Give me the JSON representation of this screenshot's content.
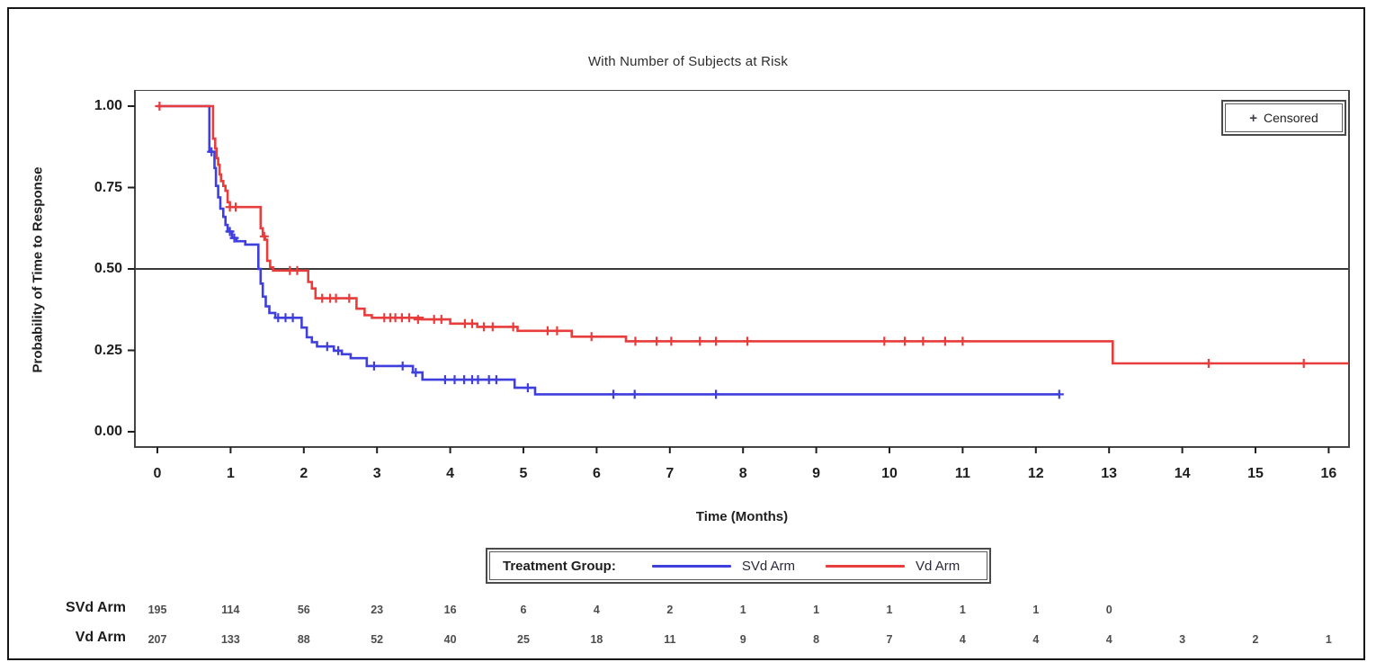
{
  "page": {
    "background": "#ffffff",
    "border_color": "#161616"
  },
  "chart_data": {
    "type": "line",
    "subtype": "kaplan-meier-step",
    "title": "With Number of Subjects at Risk",
    "xlabel": "Time (Months)",
    "ylabel": "Probability of Time to Response",
    "xlim": [
      -0.3,
      16.3
    ],
    "ylim": [
      -0.05,
      1.05
    ],
    "grid": false,
    "reference_line_y": 0.5,
    "xticks": [
      0,
      1,
      2,
      3,
      4,
      5,
      6,
      7,
      8,
      9,
      10,
      11,
      12,
      13,
      14,
      15,
      16
    ],
    "yticks": [
      "0.00",
      "0.25",
      "0.50",
      "0.75",
      "1.00"
    ],
    "censored_legend": {
      "marker": "+",
      "label": "Censored",
      "position": "top-right"
    },
    "group_legend_label": "Treatment Group:",
    "series": [
      {
        "name": "SVd Arm",
        "color": "#3f3fdd",
        "start": [
          0,
          1.0
        ],
        "drops": [
          [
            0.71,
            0.86
          ],
          [
            0.78,
            0.81
          ],
          [
            0.8,
            0.755
          ],
          [
            0.83,
            0.72
          ],
          [
            0.86,
            0.685
          ],
          [
            0.9,
            0.66
          ],
          [
            0.93,
            0.635
          ],
          [
            0.96,
            0.615
          ],
          [
            1.02,
            0.595
          ],
          [
            1.08,
            0.585
          ],
          [
            1.2,
            0.575
          ],
          [
            1.38,
            0.5
          ],
          [
            1.41,
            0.455
          ],
          [
            1.44,
            0.415
          ],
          [
            1.48,
            0.385
          ],
          [
            1.53,
            0.365
          ],
          [
            1.61,
            0.35
          ],
          [
            1.97,
            0.32
          ],
          [
            2.04,
            0.29
          ],
          [
            2.11,
            0.275
          ],
          [
            2.18,
            0.262
          ],
          [
            2.41,
            0.249
          ],
          [
            2.52,
            0.238
          ],
          [
            2.64,
            0.226
          ],
          [
            2.86,
            0.202
          ],
          [
            3.49,
            0.182
          ],
          [
            3.62,
            0.16
          ],
          [
            4.88,
            0.135
          ],
          [
            5.16,
            0.115
          ]
        ],
        "end_t": 12.32,
        "censors": [
          [
            0.74,
            0.86
          ],
          [
            0.99,
            0.615
          ],
          [
            1.05,
            0.595
          ],
          [
            1.65,
            0.35
          ],
          [
            1.75,
            0.35
          ],
          [
            1.85,
            0.35
          ],
          [
            2.32,
            0.262
          ],
          [
            2.47,
            0.249
          ],
          [
            2.96,
            0.202
          ],
          [
            3.35,
            0.202
          ],
          [
            3.53,
            0.182
          ],
          [
            3.93,
            0.16
          ],
          [
            4.06,
            0.16
          ],
          [
            4.19,
            0.16
          ],
          [
            4.3,
            0.16
          ],
          [
            4.38,
            0.16
          ],
          [
            4.53,
            0.16
          ],
          [
            4.63,
            0.16
          ],
          [
            5.06,
            0.135
          ],
          [
            6.23,
            0.115
          ],
          [
            6.52,
            0.115
          ],
          [
            7.63,
            0.115
          ],
          [
            12.32,
            0.115
          ]
        ]
      },
      {
        "name": "Vd Arm",
        "color": "#e83d3d",
        "start": [
          0,
          1.0
        ],
        "drops": [
          [
            0.76,
            0.9
          ],
          [
            0.79,
            0.87
          ],
          [
            0.81,
            0.84
          ],
          [
            0.83,
            0.82
          ],
          [
            0.85,
            0.79
          ],
          [
            0.87,
            0.77
          ],
          [
            0.9,
            0.755
          ],
          [
            0.93,
            0.74
          ],
          [
            0.96,
            0.705
          ],
          [
            0.99,
            0.69
          ],
          [
            1.41,
            0.625
          ],
          [
            1.44,
            0.6
          ],
          [
            1.47,
            0.59
          ],
          [
            1.5,
            0.525
          ],
          [
            1.54,
            0.505
          ],
          [
            1.58,
            0.495
          ],
          [
            2.06,
            0.46
          ],
          [
            2.11,
            0.44
          ],
          [
            2.16,
            0.41
          ],
          [
            2.72,
            0.378
          ],
          [
            2.83,
            0.358
          ],
          [
            2.93,
            0.35
          ],
          [
            3.62,
            0.345
          ],
          [
            4.0,
            0.332
          ],
          [
            4.37,
            0.322
          ],
          [
            4.92,
            0.31
          ],
          [
            5.66,
            0.292
          ],
          [
            6.4,
            0.278
          ],
          [
            13.05,
            0.21
          ]
        ],
        "end_t": 16.27,
        "censors": [
          [
            0.03,
            1.0
          ],
          [
            0.99,
            0.69
          ],
          [
            1.07,
            0.69
          ],
          [
            1.46,
            0.6
          ],
          [
            1.81,
            0.495
          ],
          [
            1.91,
            0.495
          ],
          [
            2.25,
            0.41
          ],
          [
            2.36,
            0.41
          ],
          [
            2.44,
            0.41
          ],
          [
            2.62,
            0.41
          ],
          [
            3.1,
            0.35
          ],
          [
            3.18,
            0.35
          ],
          [
            3.25,
            0.35
          ],
          [
            3.34,
            0.35
          ],
          [
            3.44,
            0.35
          ],
          [
            3.56,
            0.345
          ],
          [
            3.78,
            0.345
          ],
          [
            3.88,
            0.345
          ],
          [
            4.2,
            0.332
          ],
          [
            4.3,
            0.332
          ],
          [
            4.46,
            0.322
          ],
          [
            4.58,
            0.322
          ],
          [
            4.86,
            0.322
          ],
          [
            5.33,
            0.31
          ],
          [
            5.46,
            0.31
          ],
          [
            5.93,
            0.292
          ],
          [
            6.53,
            0.278
          ],
          [
            6.82,
            0.278
          ],
          [
            7.02,
            0.278
          ],
          [
            7.41,
            0.278
          ],
          [
            7.63,
            0.278
          ],
          [
            8.06,
            0.278
          ],
          [
            9.93,
            0.278
          ],
          [
            10.21,
            0.278
          ],
          [
            10.46,
            0.278
          ],
          [
            10.76,
            0.278
          ],
          [
            11.0,
            0.278
          ],
          [
            14.36,
            0.21
          ],
          [
            15.66,
            0.21
          ]
        ]
      }
    ],
    "at_risk": {
      "rows": [
        {
          "label": "SVd Arm",
          "values": [
            "195",
            "114",
            "56",
            "23",
            "16",
            "6",
            "4",
            "2",
            "1",
            "1",
            "1",
            "1",
            "1",
            "0"
          ]
        },
        {
          "label": "Vd Arm",
          "values": [
            "207",
            "133",
            "88",
            "52",
            "40",
            "25",
            "18",
            "11",
            "9",
            "8",
            "7",
            "4",
            "4",
            "4",
            "3",
            "2",
            "1"
          ]
        }
      ]
    }
  }
}
